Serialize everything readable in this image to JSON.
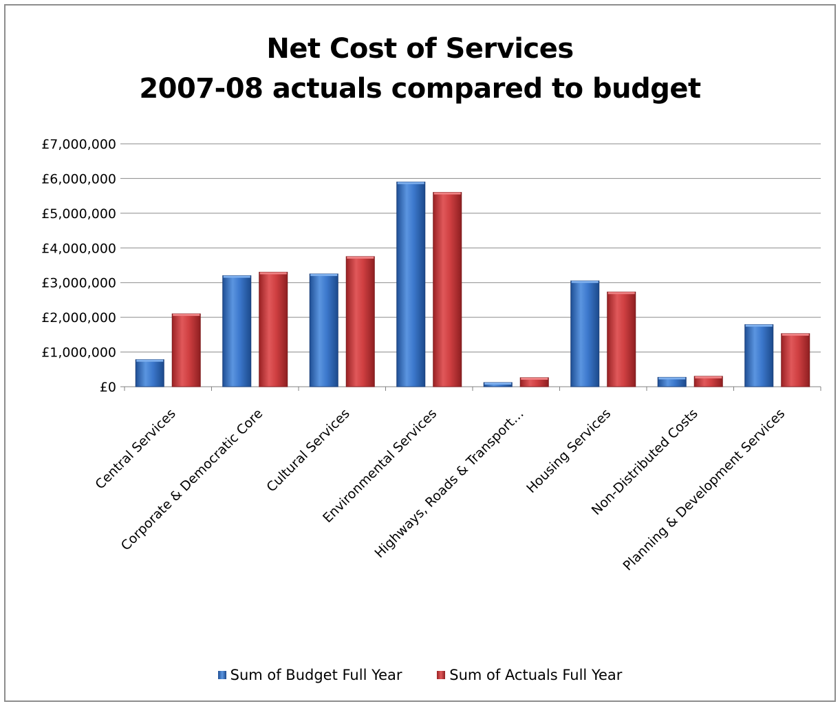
{
  "chart_data": {
    "type": "bar",
    "title": [
      "Net Cost of Services",
      "2007-08 actuals compared to budget"
    ],
    "categories": [
      "Central Services",
      "Corporate & Democratic Core",
      "Cultural Services",
      "Environmental Services",
      "Highways, Roads & Transport…",
      "Housing Services",
      "Non-Distributed Costs",
      "Planning & Development Services"
    ],
    "series": [
      {
        "name": "Sum of Budget Full Year",
        "color": "#2f6fc1",
        "values": [
          780000,
          3200000,
          3250000,
          5900000,
          120000,
          3050000,
          270000,
          1790000
        ]
      },
      {
        "name": "Sum of Actuals Full Year",
        "color": "#c0393b",
        "values": [
          2100000,
          3300000,
          3750000,
          5600000,
          260000,
          2730000,
          300000,
          1530000
        ]
      }
    ],
    "y_ticks": [
      "£0",
      "£1,000,000",
      "£2,000,000",
      "£3,000,000",
      "£4,000,000",
      "£5,000,000",
      "£6,000,000",
      "£7,000,000"
    ],
    "ylim": [
      0,
      7000000
    ],
    "xlabel": "",
    "ylabel": "",
    "grid": true,
    "legend": "bottom"
  }
}
